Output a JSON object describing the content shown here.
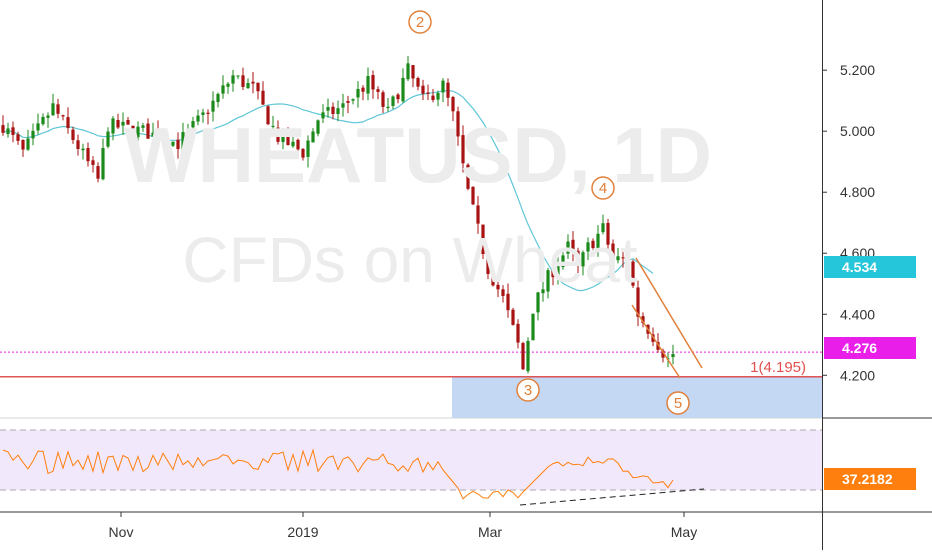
{
  "chart_data": [
    {
      "type": "candlestick",
      "watermark": {
        "symbol": "WHEATUSD, 1D",
        "description": "CFDs on Wheat"
      },
      "x_ticks": [
        "Nov",
        "2019",
        "Mar",
        "May"
      ],
      "y_ticks": [
        "5.200",
        "5.000",
        "4.800",
        "4.600",
        "4.400",
        "4.200"
      ],
      "ylim": [
        4.06,
        5.43
      ],
      "price_labels": {
        "ma": {
          "value": "4.534",
          "color": "#26c6da"
        },
        "last": {
          "value": "4.276",
          "color": "#e91ee9"
        }
      },
      "fib_label": "1(4.195)",
      "fib_level": 4.195,
      "waves": [
        {
          "label": "2",
          "price": 5.25
        },
        {
          "label": "3",
          "price": 4.2
        },
        {
          "label": "4",
          "price": 4.72
        },
        {
          "label": "5",
          "price": 4.18
        }
      ],
      "colors": {
        "up": "#1b8a1b",
        "down": "#a81212",
        "ma": "#5fc6d6",
        "wave": "#e0803a",
        "support": "#c4d8f4"
      }
    },
    {
      "type": "line",
      "indicator_value": "37.2182",
      "indicator_color": "#ff7f0e",
      "band": [
        30,
        70
      ]
    }
  ]
}
